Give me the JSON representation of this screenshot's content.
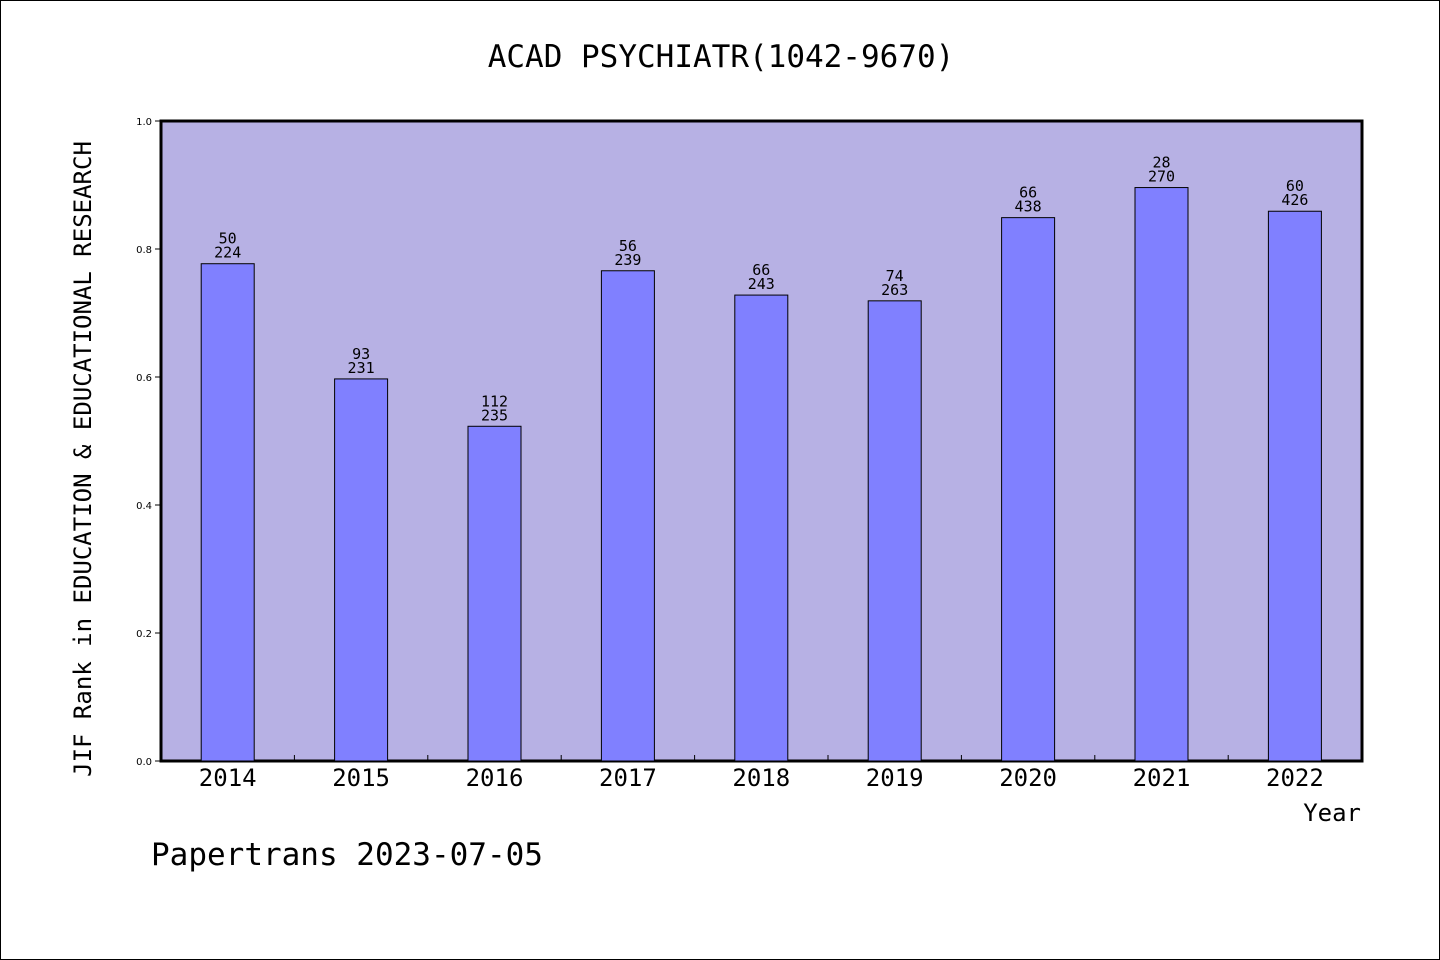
{
  "chart_data": {
    "type": "bar",
    "title": "ACAD PSYCHIATR(1042-9670)",
    "xlabel": "Year",
    "ylabel": "JIF Rank in EDUCATION & EDUCATIONAL RESEARCH",
    "categories": [
      "2014",
      "2015",
      "2016",
      "2017",
      "2018",
      "2019",
      "2020",
      "2021",
      "2022"
    ],
    "values": [
      0.777,
      0.597,
      0.523,
      0.766,
      0.728,
      0.719,
      0.849,
      0.896,
      0.859
    ],
    "labels_top": [
      "50",
      "93",
      "112",
      "56",
      "66",
      "74",
      "66",
      "28",
      "60"
    ],
    "labels_bottom": [
      "224",
      "231",
      "235",
      "239",
      "243",
      "263",
      "438",
      "270",
      "426"
    ],
    "ylim": [
      0,
      1.0
    ],
    "yticks": [
      "0.0",
      "0.2",
      "0.4",
      "0.6",
      "0.8",
      "1.0"
    ],
    "grid": false,
    "colors": {
      "plot_background": "#b7b1e4",
      "bar_fill": "#8080ff",
      "bar_edge": "#000000"
    }
  },
  "footer": {
    "text": "Papertrans 2023-07-05"
  }
}
